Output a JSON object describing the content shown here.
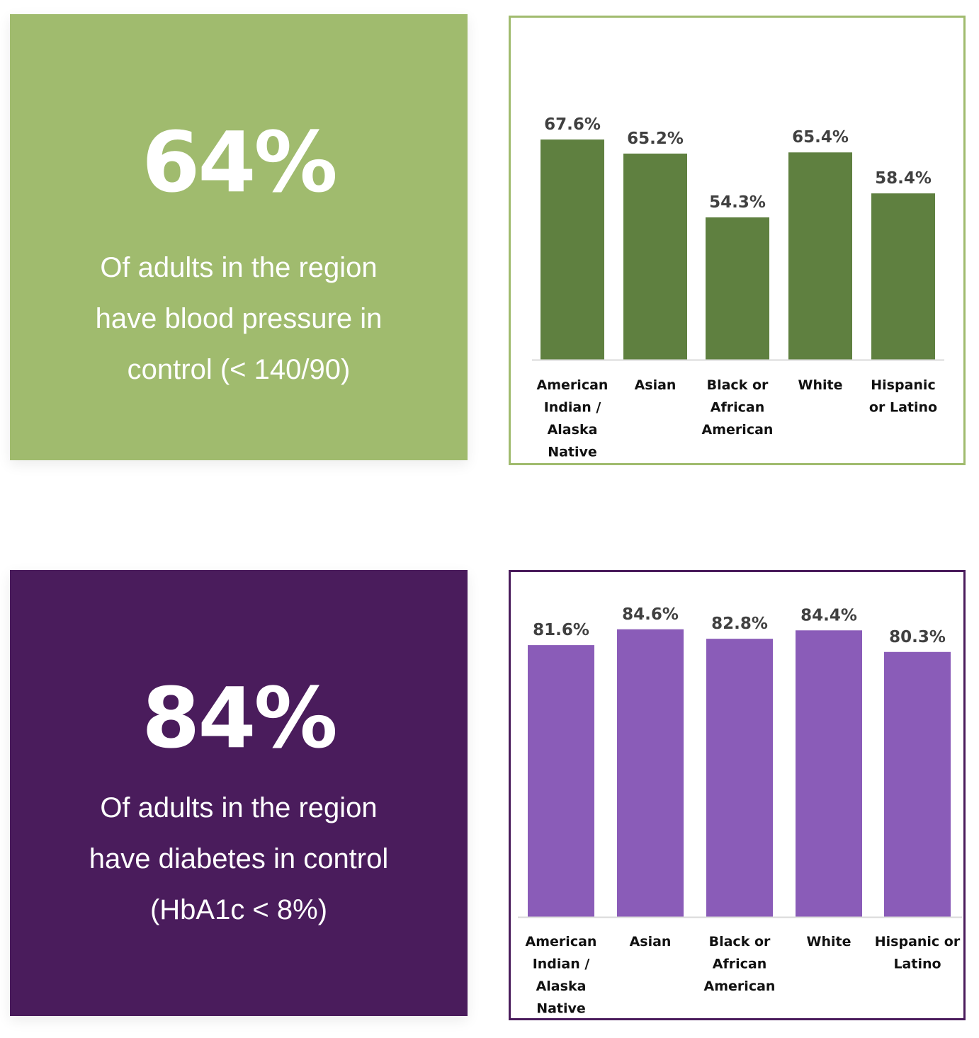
{
  "panels": [
    {
      "stat": "64%",
      "description_lines": [
        "Of adults in the region",
        "have blood pressure in",
        "control (< 140/90)"
      ],
      "panel_color": "#a0bb6e",
      "bar_color": "#5f8040",
      "border_color": "#a0bb6e"
    },
    {
      "stat": "84%",
      "description_lines": [
        "Of adults in the region",
        "have diabetes in control",
        "(HbA1c < 8%)"
      ],
      "panel_color": "#4a1c5c",
      "bar_color": "#8a5cb8",
      "border_color": "#4a1c5c"
    }
  ],
  "chart_data": [
    {
      "type": "bar",
      "categories": [
        [
          "American",
          "Indian /",
          "Alaska",
          "Native"
        ],
        [
          "Asian"
        ],
        [
          "Black or",
          "African",
          "American"
        ],
        [
          "White"
        ],
        [
          "Hispanic",
          "or Latino"
        ]
      ],
      "values": [
        67.6,
        65.2,
        54.3,
        65.4,
        58.4
      ],
      "data_labels": [
        "67.6%",
        "65.2%",
        "54.3%",
        "65.4%",
        "58.4%"
      ],
      "grid": false
    },
    {
      "type": "bar",
      "categories": [
        [
          "American",
          "Indian /",
          "Alaska",
          "Native"
        ],
        [
          "Asian"
        ],
        [
          "Black or",
          "African",
          "American"
        ],
        [
          "White"
        ],
        [
          "Hispanic or",
          "Latino"
        ]
      ],
      "values": [
        81.6,
        84.6,
        82.8,
        84.4,
        80.3
      ],
      "data_labels": [
        "81.6%",
        "84.6%",
        "82.8%",
        "84.4%",
        "80.3%"
      ],
      "grid": false
    }
  ]
}
